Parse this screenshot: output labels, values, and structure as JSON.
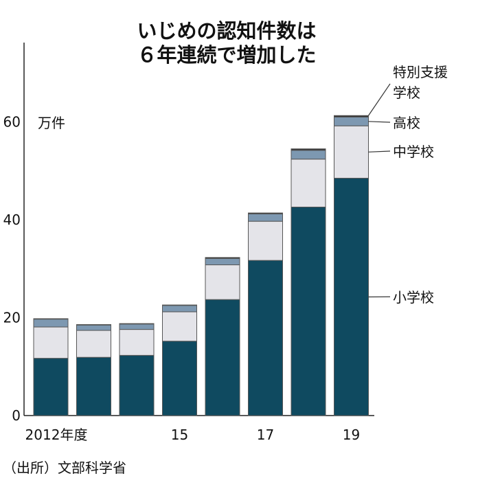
{
  "chart_data": {
    "type": "bar",
    "stacked": true,
    "title": [
      "いじめの認知件数は",
      "６年連続で増加した"
    ],
    "unit_label": "万件",
    "source": "（出所）文部科学省",
    "categories": [
      "2012",
      "2013",
      "2014",
      "2015",
      "2016",
      "2017",
      "2018",
      "2019"
    ],
    "x_tick_labels": [
      {
        "category": "2012",
        "label": "2012年度"
      },
      {
        "category": "2015",
        "label": "15"
      },
      {
        "category": "2017",
        "label": "17"
      },
      {
        "category": "2019",
        "label": "19"
      }
    ],
    "y_ticks": [
      0,
      20,
      40,
      60
    ],
    "ylim": [
      0,
      76
    ],
    "grid": false,
    "legend_placement": "right (direct labels)",
    "series": [
      {
        "name": "小学校",
        "color": "#0f4a60",
        "values": [
          11.7,
          11.9,
          12.3,
          15.2,
          23.7,
          31.7,
          42.6,
          48.5
        ]
      },
      {
        "name": "中学校",
        "color": "#e4e4e9",
        "values": [
          6.4,
          5.5,
          5.3,
          6.0,
          7.1,
          8.0,
          9.8,
          10.7
        ]
      },
      {
        "name": "高校",
        "color": "#7d98b1",
        "values": [
          1.6,
          1.1,
          1.1,
          1.3,
          1.3,
          1.5,
          1.8,
          1.8
        ]
      },
      {
        "name": "特別支援学校",
        "label_lines": [
          "特別支援",
          "学校"
        ],
        "color": "#333333",
        "values": [
          0.1,
          0.1,
          0.1,
          0.1,
          0.2,
          0.2,
          0.3,
          0.3
        ]
      }
    ]
  }
}
